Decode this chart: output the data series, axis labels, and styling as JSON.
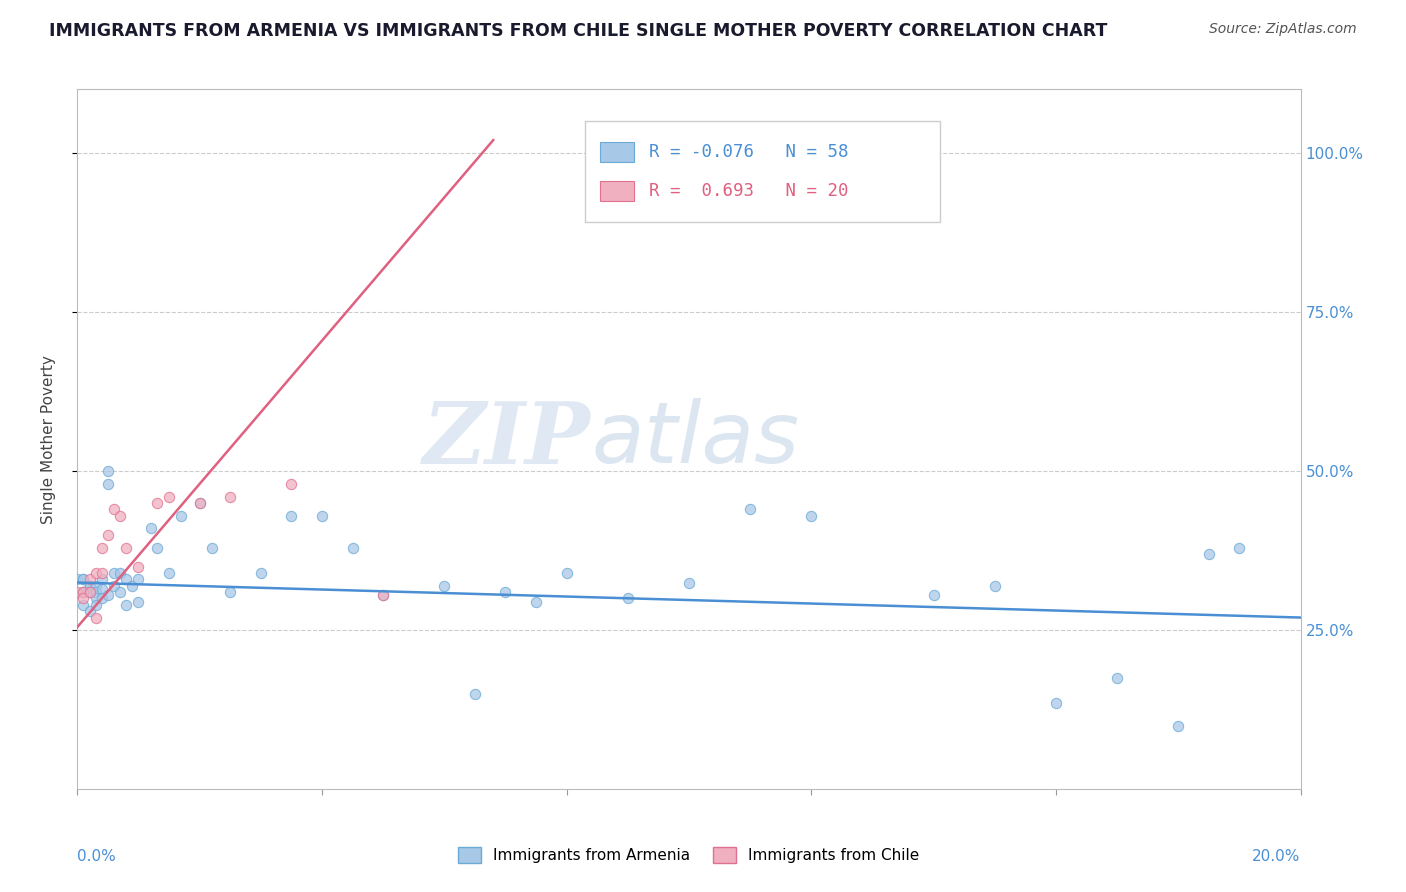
{
  "title": "IMMIGRANTS FROM ARMENIA VS IMMIGRANTS FROM CHILE SINGLE MOTHER POVERTY CORRELATION CHART",
  "source": "Source: ZipAtlas.com",
  "ylabel": "Single Mother Poverty",
  "right_yticks": [
    0.25,
    0.5,
    0.75,
    1.0
  ],
  "right_yticklabels": [
    "25.0%",
    "50.0%",
    "75.0%",
    "100.0%"
  ],
  "xlim": [
    0.0,
    0.2
  ],
  "ylim": [
    0.0,
    1.1
  ],
  "armenia_color": "#a8c8e8",
  "armenia_color_dark": "#6aaad4",
  "chile_color": "#f0b0c0",
  "chile_color_dark": "#e07090",
  "armenia_line_color": "#4a8fd4",
  "chile_line_color": "#e06080",
  "armenia_R": -0.076,
  "armenia_N": 58,
  "chile_R": 0.693,
  "chile_N": 20,
  "legend_label_armenia": "Immigrants from Armenia",
  "legend_label_chile": "Immigrants from Chile",
  "watermark_zip": "ZIP",
  "watermark_atlas": "atlas",
  "armenia_scatter_x": [
    0.0,
    0.001,
    0.001,
    0.001,
    0.001,
    0.001,
    0.002,
    0.002,
    0.002,
    0.002,
    0.002,
    0.003,
    0.003,
    0.003,
    0.003,
    0.004,
    0.004,
    0.004,
    0.005,
    0.005,
    0.005,
    0.006,
    0.006,
    0.007,
    0.007,
    0.008,
    0.008,
    0.009,
    0.01,
    0.01,
    0.012,
    0.013,
    0.015,
    0.017,
    0.02,
    0.022,
    0.025,
    0.03,
    0.035,
    0.04,
    0.045,
    0.05,
    0.06,
    0.065,
    0.07,
    0.075,
    0.08,
    0.09,
    0.1,
    0.11,
    0.12,
    0.14,
    0.15,
    0.16,
    0.17,
    0.18,
    0.185,
    0.19
  ],
  "armenia_scatter_y": [
    0.33,
    0.31,
    0.33,
    0.33,
    0.31,
    0.29,
    0.31,
    0.32,
    0.32,
    0.31,
    0.28,
    0.32,
    0.31,
    0.3,
    0.29,
    0.33,
    0.315,
    0.3,
    0.48,
    0.5,
    0.305,
    0.34,
    0.32,
    0.34,
    0.31,
    0.33,
    0.29,
    0.32,
    0.33,
    0.295,
    0.41,
    0.38,
    0.34,
    0.43,
    0.45,
    0.38,
    0.31,
    0.34,
    0.43,
    0.43,
    0.38,
    0.305,
    0.32,
    0.15,
    0.31,
    0.295,
    0.34,
    0.3,
    0.325,
    0.44,
    0.43,
    0.305,
    0.32,
    0.135,
    0.175,
    0.1,
    0.37,
    0.38
  ],
  "chile_scatter_x": [
    0.0,
    0.001,
    0.001,
    0.002,
    0.002,
    0.003,
    0.003,
    0.004,
    0.004,
    0.005,
    0.006,
    0.007,
    0.008,
    0.01,
    0.013,
    0.015,
    0.02,
    0.025,
    0.035,
    0.05
  ],
  "chile_scatter_y": [
    0.31,
    0.31,
    0.3,
    0.33,
    0.31,
    0.34,
    0.27,
    0.38,
    0.34,
    0.4,
    0.44,
    0.43,
    0.38,
    0.35,
    0.45,
    0.46,
    0.45,
    0.46,
    0.48,
    0.305
  ],
  "armenia_line_x0": 0.0,
  "armenia_line_x1": 0.2,
  "armenia_line_y0": 0.325,
  "armenia_line_y1": 0.27,
  "chile_line_x0": 0.0,
  "chile_line_x1": 0.068,
  "chile_line_y0": 0.255,
  "chile_line_y1": 1.02
}
